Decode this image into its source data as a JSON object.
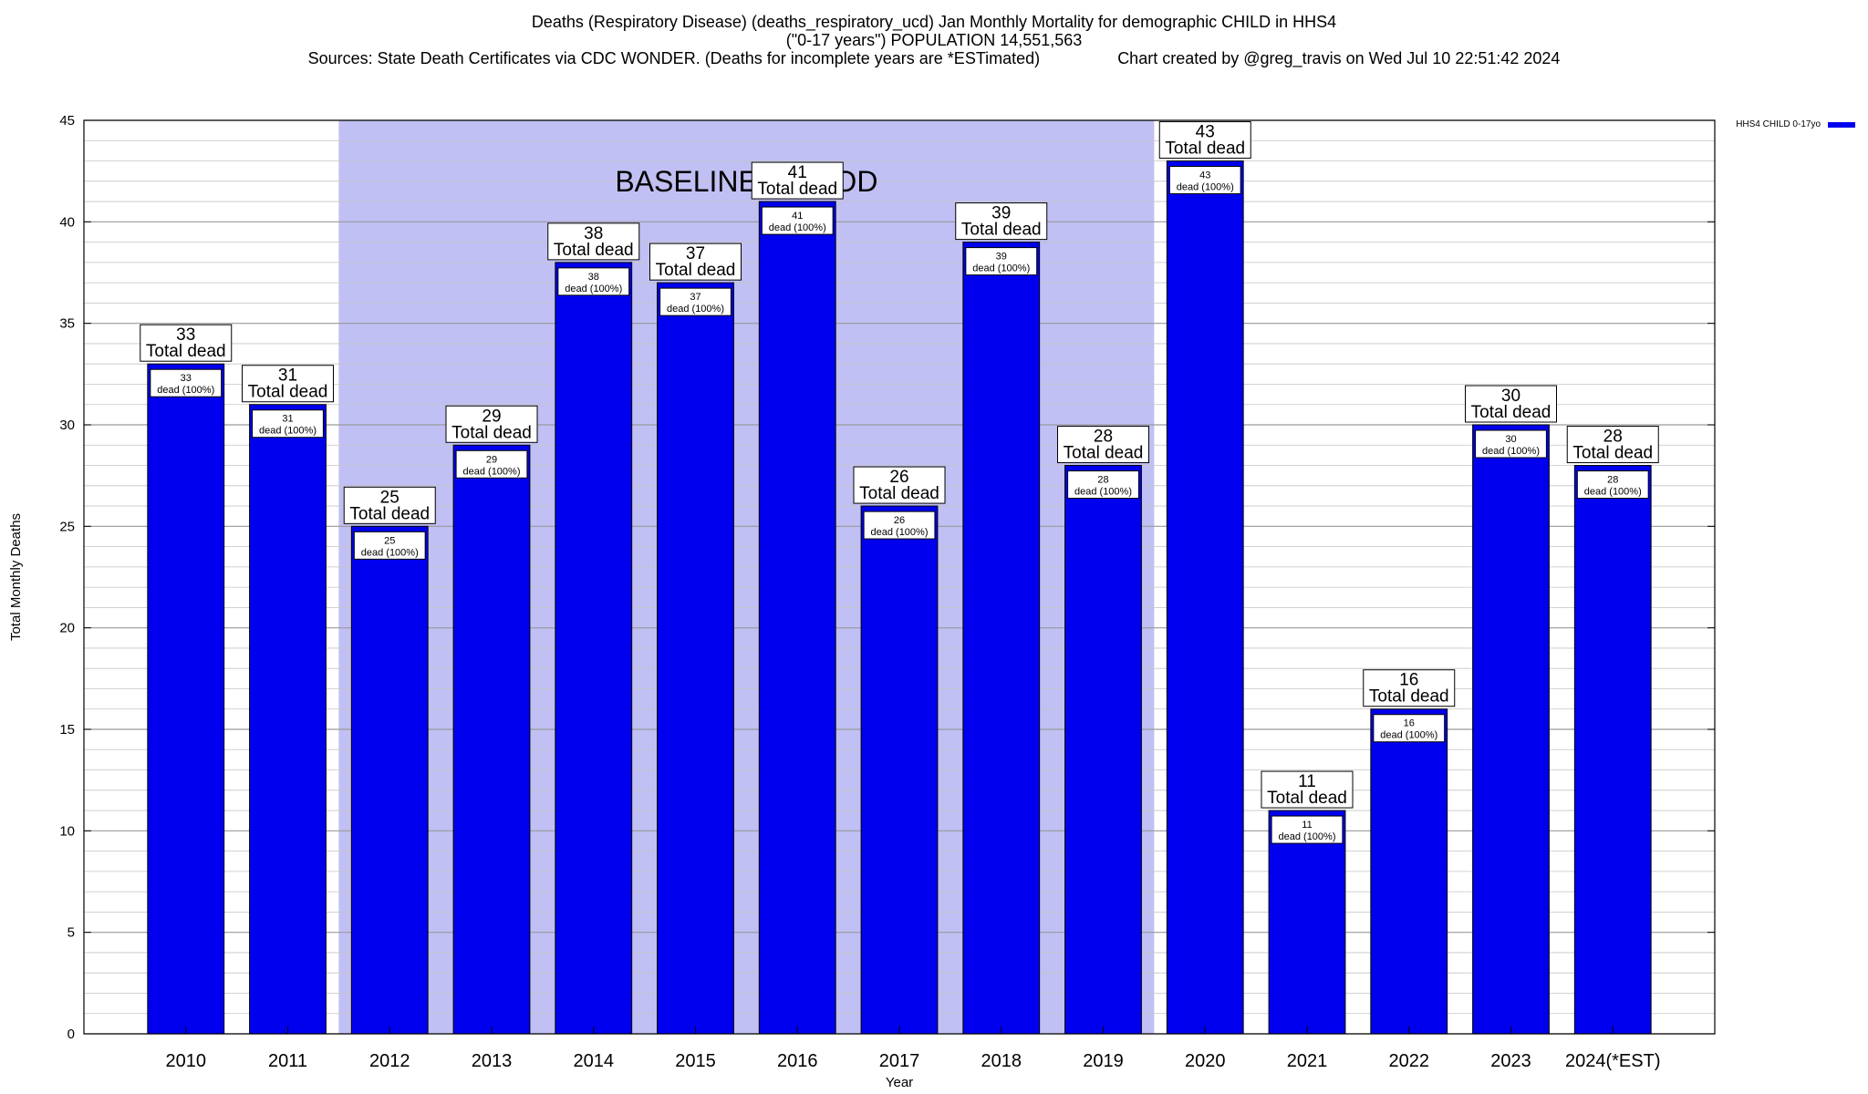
{
  "header": {
    "line1": "Deaths (Respiratory Disease) (deaths_respiratory_ucd) Jan Monthly Mortality for demographic CHILD in HHS4",
    "line2": "(\"0-17 years\") POPULATION 14,551,563",
    "line3": "Sources: State Death Certificates via CDC WONDER. (Deaths for incomplete years are *ESTimated)                 Chart created by @greg_travis on Wed Jul 10 22:51:42 2024"
  },
  "chart_data": {
    "type": "bar",
    "xlabel": "Year",
    "ylabel": "Total Monthly Deaths",
    "ylim": [
      0,
      45
    ],
    "yticks": [
      0,
      5,
      10,
      15,
      20,
      25,
      30,
      35,
      40,
      45
    ],
    "grid": true,
    "legend_position": "top-right",
    "categories": [
      "2010",
      "2011",
      "2012",
      "2013",
      "2014",
      "2015",
      "2016",
      "2017",
      "2018",
      "2019",
      "2020",
      "2021",
      "2022",
      "2023",
      "2024(*EST)"
    ],
    "series": [
      {
        "name": "HHS4 CHILD 0-17yo",
        "color": "#0000ee",
        "values": [
          33,
          31,
          25,
          29,
          38,
          37,
          41,
          26,
          39,
          28,
          43,
          11,
          16,
          30,
          28
        ]
      }
    ],
    "total_label": "Total dead",
    "inner_label": "dead (100%)",
    "baseline": {
      "label": "BASELINE PERIOD",
      "start_category": "2012",
      "end_category": "2019",
      "color": "#c0c0f4"
    }
  }
}
